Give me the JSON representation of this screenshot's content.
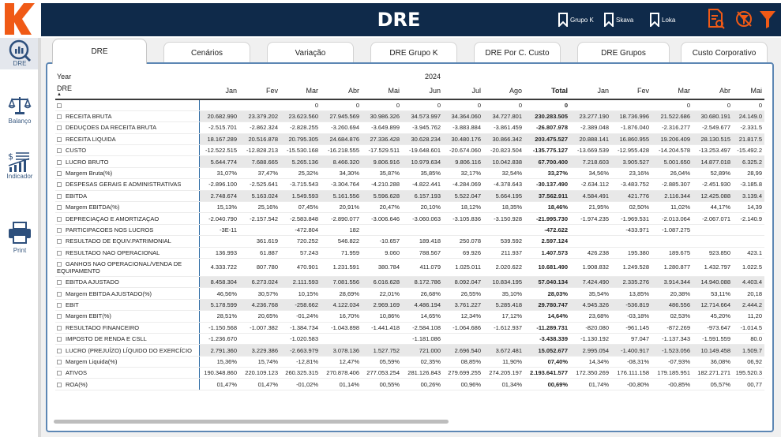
{
  "header": {
    "title": "DRE",
    "buttons": [
      {
        "label": "Grupo K",
        "icon": "bookmark-icon"
      },
      {
        "label": "Skava",
        "icon": "bookmark-icon"
      },
      {
        "label": "Loka",
        "icon": "bookmark-icon"
      }
    ],
    "logo_letter": "K",
    "colors": {
      "bar": "#0f2a4a",
      "accent": "#f05a16"
    }
  },
  "sidebar": {
    "items": [
      {
        "label": "DRE",
        "icon": "report-search-icon"
      },
      {
        "label": "Balanço",
        "icon": "balance-scale-icon"
      },
      {
        "label": "Indicador",
        "icon": "indicator-chart-icon"
      },
      {
        "label": "Print",
        "icon": "printer-icon"
      }
    ]
  },
  "tabs": [
    {
      "label": "DRE"
    },
    {
      "label": "Cenários"
    },
    {
      "label": "Variação"
    },
    {
      "label": "DRE Grupo K"
    },
    {
      "label": "DRE Por C. Custo"
    },
    {
      "label": "DRE Grupos"
    },
    {
      "label": "Custo Corporativo"
    }
  ],
  "table": {
    "year_label": "Year",
    "year_value": "2024",
    "row_header": "DRE",
    "months_1": [
      "Jan",
      "Fev",
      "Mar",
      "Abr",
      "Mai",
      "Jun",
      "Jul",
      "Ago"
    ],
    "total_label": "Total",
    "months_2": [
      "Jan",
      "Fev",
      "Mar",
      "Abr",
      "Mai"
    ],
    "rows": [
      {
        "label": "",
        "v": [
          "",
          "",
          "0",
          "0",
          "0",
          "0",
          "0",
          "0"
        ],
        "t": "0",
        "w": [
          "",
          "",
          "0",
          "0",
          "0"
        ],
        "shade": false
      },
      {
        "label": "RECEITA BRUTA",
        "v": [
          "20.682.990",
          "23.379.202",
          "23.623.560",
          "27.945.569",
          "30.986.326",
          "34.573.997",
          "34.364.060",
          "34.727.801"
        ],
        "t": "230.283.505",
        "w": [
          "23.277.190",
          "18.736.996",
          "21.522.686",
          "30.680.191",
          "24.149.0"
        ],
        "shade": true
      },
      {
        "label": "DEDUÇOES DA RECEITA BRUTA",
        "v": [
          "-2.515.701",
          "-2.862.324",
          "-2.828.255",
          "-3.260.694",
          "-3.649.899",
          "-3.945.762",
          "-3.883.884",
          "-3.861.459"
        ],
        "t": "-26.807.978",
        "w": [
          "-2.389.048",
          "-1.876.040",
          "-2.316.277",
          "-2.549.677",
          "-2.331.5"
        ],
        "shade": false
      },
      {
        "label": "RECEITA LIQUIDA",
        "v": [
          "18.167.289",
          "20.516.878",
          "20.795.305",
          "24.684.876",
          "27.336.428",
          "30.628.234",
          "30.480.176",
          "30.866.342"
        ],
        "t": "203.475.527",
        "w": [
          "20.888.141",
          "16.860.955",
          "19.206.409",
          "28.130.515",
          "21.817.5"
        ],
        "shade": true
      },
      {
        "label": "CUSTO",
        "v": [
          "-12.522.515",
          "-12.828.213",
          "-15.530.168",
          "-16.218.555",
          "-17.529.511",
          "-19.648.601",
          "-20.674.060",
          "-20.823.504"
        ],
        "t": "-135.775.127",
        "w": [
          "-13.669.539",
          "-12.955.428",
          "-14.204.578",
          "-13.253.497",
          "-15.492.2"
        ],
        "shade": false
      },
      {
        "label": "LUCRO BRUTO",
        "v": [
          "5.644.774",
          "7.688.665",
          "5.265.136",
          "8.466.320",
          "9.806.916",
          "10.979.634",
          "9.806.116",
          "10.042.838"
        ],
        "t": "67.700.400",
        "w": [
          "7.218.603",
          "3.905.527",
          "5.001.650",
          "14.877.018",
          "6.325.2"
        ],
        "shade": true
      },
      {
        "label": "Margem Bruta(%)",
        "v": [
          "31,07%",
          "37,47%",
          "25,32%",
          "34,30%",
          "35,87%",
          "35,85%",
          "32,17%",
          "32,54%"
        ],
        "t": "33,27%",
        "w": [
          "34,56%",
          "23,16%",
          "26,04%",
          "52,89%",
          "28,99"
        ],
        "shade": false
      },
      {
        "label": "DESPESAS GERAIS E ADMINISTRATIVAS",
        "v": [
          "-2.896.100",
          "-2.525.641",
          "-3.715.543",
          "-3.304.764",
          "-4.210.288",
          "-4.822.441",
          "-4.284.069",
          "-4.378.643"
        ],
        "t": "-30.137.490",
        "w": [
          "-2.634.112",
          "-3.483.752",
          "-2.885.307",
          "-2.451.930",
          "-3.185.8"
        ],
        "shade": false
      },
      {
        "label": "EBITDA",
        "v": [
          "2.748.674",
          "5.163.024",
          "1.549.593",
          "5.161.556",
          "5.596.628",
          "6.157.193",
          "5.522.047",
          "5.664.195"
        ],
        "t": "37.562.911",
        "w": [
          "4.584.491",
          "421.776",
          "2.116.344",
          "12.425.088",
          "3.139.4"
        ],
        "shade": true
      },
      {
        "label": "Margem EBITDA(%)",
        "v": [
          "15,13%",
          "25,16%",
          "07,45%",
          "20,91%",
          "20,47%",
          "20,10%",
          "18,12%",
          "18,35%"
        ],
        "t": "18,46%",
        "w": [
          "21,95%",
          "02,50%",
          "11,02%",
          "44,17%",
          "14,39"
        ],
        "shade": false
      },
      {
        "label": "DEPRECIAÇAO E AMORTIZAÇAO",
        "v": [
          "-2.040.790",
          "-2.157.542",
          "-2.583.848",
          "-2.890.077",
          "-3.006.646",
          "-3.060.063",
          "-3.105.836",
          "-3.150.928"
        ],
        "t": "-21.995.730",
        "w": [
          "-1.974.235",
          "-1.969.531",
          "-2.013.064",
          "-2.067.071",
          "-2.140.9"
        ],
        "shade": false
      },
      {
        "label": "PARTICIPACOES NOS LUCROS",
        "v": [
          "-3E-11",
          "",
          "-472.804",
          "182",
          "",
          "",
          "",
          ""
        ],
        "t": "-472.622",
        "w": [
          "",
          "-433.971",
          "-1.087.275",
          "",
          ""
        ],
        "shade": false
      },
      {
        "label": "RESULTADO DE EQUIV.PATRIMONIAL",
        "v": [
          "",
          "361.619",
          "720.252",
          "546.822",
          "-10.657",
          "189.418",
          "250.078",
          "539.592"
        ],
        "t": "2.597.124",
        "w": [
          "",
          "",
          "",
          "",
          ""
        ],
        "shade": false
      },
      {
        "label": "RESULTADO NAO OPERACIONAL",
        "v": [
          "136.993",
          "61.887",
          "57.243",
          "71.959",
          "9.060",
          "788.567",
          "69.926",
          "211.937"
        ],
        "t": "1.407.573",
        "w": [
          "426.238",
          "195.380",
          "189.675",
          "923.850",
          "423.1"
        ],
        "shade": false
      },
      {
        "label": "GANHOS NAO OPERACIONAL/VENDA DE EQUIPAMENTO",
        "v": [
          "4.333.722",
          "807.780",
          "470.901",
          "1.231.591",
          "380.784",
          "411.079",
          "1.025.011",
          "2.020.622"
        ],
        "t": "10.681.490",
        "w": [
          "1.908.832",
          "1.249.528",
          "1.280.877",
          "1.432.797",
          "1.022.5"
        ],
        "shade": false,
        "tall": true
      },
      {
        "label": "EBITDA AJUSTADO",
        "v": [
          "8.458.304",
          "6.273.024",
          "2.111.593",
          "7.081.556",
          "6.016.628",
          "8.172.786",
          "8.092.047",
          "10.834.195"
        ],
        "t": "57.040.134",
        "w": [
          "7.424.490",
          "2.335.276",
          "3.914.344",
          "14.940.088",
          "4.403.4"
        ],
        "shade": true
      },
      {
        "label": "Margem EBITDA AJUSTADO(%)",
        "v": [
          "46,56%",
          "30,57%",
          "10,15%",
          "28,69%",
          "22,01%",
          "26,68%",
          "26,55%",
          "35,10%"
        ],
        "t": "28,03%",
        "w": [
          "35,54%",
          "13,85%",
          "20,38%",
          "53,11%",
          "20,18"
        ],
        "shade": false
      },
      {
        "label": "EBIT",
        "v": [
          "5.178.599",
          "4.236.768",
          "-258.662",
          "4.122.034",
          "2.969.169",
          "4.486.194",
          "3.761.227",
          "5.285.418"
        ],
        "t": "29.780.747",
        "w": [
          "4.945.326",
          "-536.819",
          "486.556",
          "12.714.664",
          "2.444.2"
        ],
        "shade": true
      },
      {
        "label": "Margem EBIT(%)",
        "v": [
          "28,51%",
          "20,65%",
          "-01,24%",
          "16,70%",
          "10,86%",
          "14,65%",
          "12,34%",
          "17,12%"
        ],
        "t": "14,64%",
        "w": [
          "23,68%",
          "-03,18%",
          "02,53%",
          "45,20%",
          "11,20"
        ],
        "shade": false
      },
      {
        "label": "RESULTADO FINANCEIRO",
        "v": [
          "-1.150.568",
          "-1.007.382",
          "-1.384.734",
          "-1.043.898",
          "-1.441.418",
          "-2.584.108",
          "-1.064.686",
          "-1.612.937"
        ],
        "t": "-11.289.731",
        "w": [
          "-820.080",
          "-961.145",
          "-872.269",
          "-973.647",
          "-1.014.5"
        ],
        "shade": false
      },
      {
        "label": "IMPOSTO DE RENDA E CSLL",
        "v": [
          "-1.236.670",
          "",
          "-1.020.583",
          "",
          "",
          "-1.181.086",
          "",
          ""
        ],
        "t": "-3.438.339",
        "w": [
          "-1.130.192",
          "97.047",
          "-1.137.343",
          "-1.591.559",
          "80.0"
        ],
        "shade": false
      },
      {
        "label": "LUCRO (PREJUÍZO) LÍQUIDO DO EXERCÍCIO",
        "v": [
          "2.791.360",
          "3.229.386",
          "-2.663.979",
          "3.078.136",
          "1.527.752",
          "721.000",
          "2.696.540",
          "3.672.481"
        ],
        "t": "15.052.677",
        "w": [
          "2.995.054",
          "-1.400.917",
          "-1.523.056",
          "10.149.458",
          "1.509.7"
        ],
        "shade": true
      },
      {
        "label": "Margem Liquida(%)",
        "v": [
          "15,36%",
          "15,74%",
          "-12,81%",
          "12,47%",
          "05,59%",
          "02,35%",
          "08,85%",
          "11,90%"
        ],
        "t": "07,40%",
        "w": [
          "14,34%",
          "-08,31%",
          "-07,93%",
          "36,08%",
          "06,92"
        ],
        "shade": false
      },
      {
        "label": "ATIVOS",
        "v": [
          "190.348.860",
          "220.109.123",
          "260.325.315",
          "270.878.406",
          "277.053.254",
          "281.126.843",
          "279.699.255",
          "274.205.197"
        ],
        "t": "2.193.641.577",
        "w": [
          "172.350.269",
          "176.111.158",
          "179.185.951",
          "182.271.271",
          "195.520.3"
        ],
        "shade": false
      },
      {
        "label": "ROA(%)",
        "v": [
          "01,47%",
          "01,47%",
          "-01,02%",
          "01,14%",
          "00,55%",
          "00,26%",
          "00,96%",
          "01,34%"
        ],
        "t": "00,69%",
        "w": [
          "01,74%",
          "-00,80%",
          "-00,85%",
          "05,57%",
          "00,77"
        ],
        "shade": false
      }
    ]
  }
}
